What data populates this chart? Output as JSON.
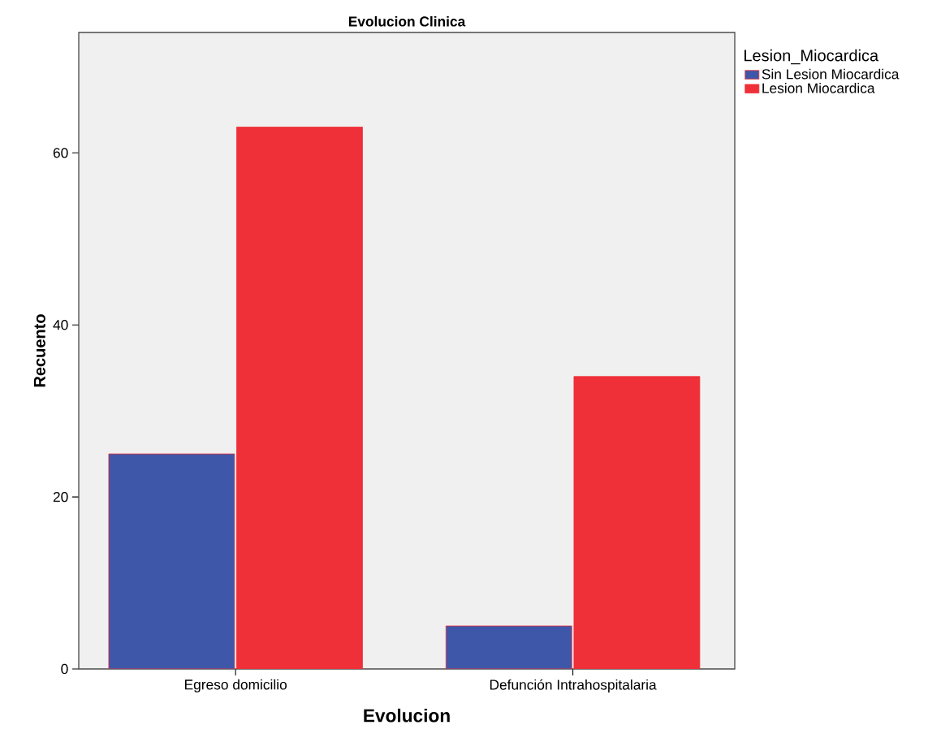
{
  "chart_data": {
    "type": "bar",
    "title": "Evolucion Clinica",
    "xlabel": "Evolucion",
    "ylabel": "Recuento",
    "legend_title": "Lesion_Miocardica",
    "categories": [
      "Egreso domicilio",
      "Defunción Intrahospitalaria"
    ],
    "series": [
      {
        "name": "Sin Lesion Miocardica",
        "color": "#3f57a8",
        "values": [
          25,
          5
        ]
      },
      {
        "name": "Lesion Miocardica",
        "color": "#ef3038",
        "values": [
          63,
          34
        ]
      }
    ],
    "ylim": [
      0,
      74
    ],
    "yticks": [
      0,
      20,
      40,
      60
    ],
    "grid": false,
    "legend": "top right"
  }
}
